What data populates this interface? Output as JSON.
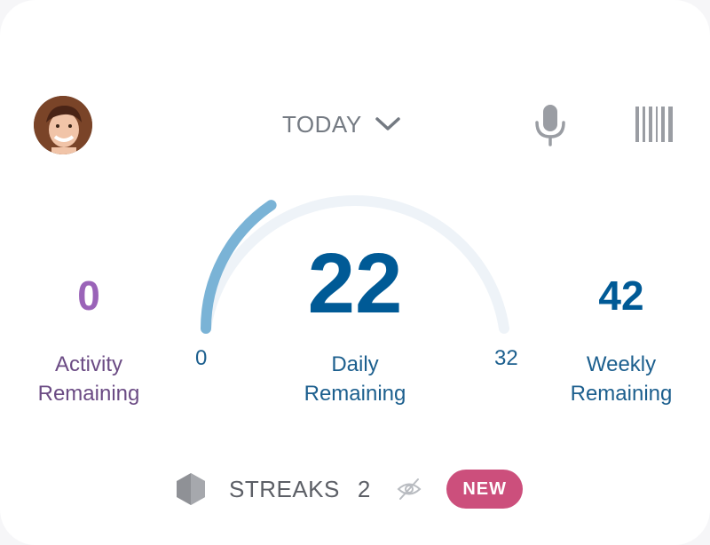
{
  "header": {
    "period_label": "TODAY",
    "icons": {
      "avatar": "user-avatar",
      "period_toggle": "chevron-down-icon",
      "voice": "microphone-icon",
      "scan": "barcode-icon"
    }
  },
  "summary": {
    "activity": {
      "value": "0",
      "label_line1": "Activity",
      "label_line2": "Remaining"
    },
    "daily": {
      "value": "22",
      "label_line1": "Daily",
      "label_line2": "Remaining"
    },
    "weekly": {
      "value": "42",
      "label_line1": "Weekly",
      "label_line2": "Remaining"
    }
  },
  "gauge": {
    "min_label": "0",
    "max_label": "32",
    "min": 0,
    "max": 32,
    "fill_fraction": 0.31
  },
  "streaks": {
    "label": "STREAKS",
    "count": "2",
    "badge": "NEW",
    "icons": {
      "badge_shape": "hexagon-icon",
      "visibility": "eye-off-icon"
    }
  },
  "colors": {
    "primary": "#005a96",
    "activity": "#9a63b8",
    "gauge_fill": "#7ab3d6",
    "gauge_track": "#eef3f8",
    "badge": "#cc4f7c",
    "icon_grey": "#9a9da3"
  }
}
